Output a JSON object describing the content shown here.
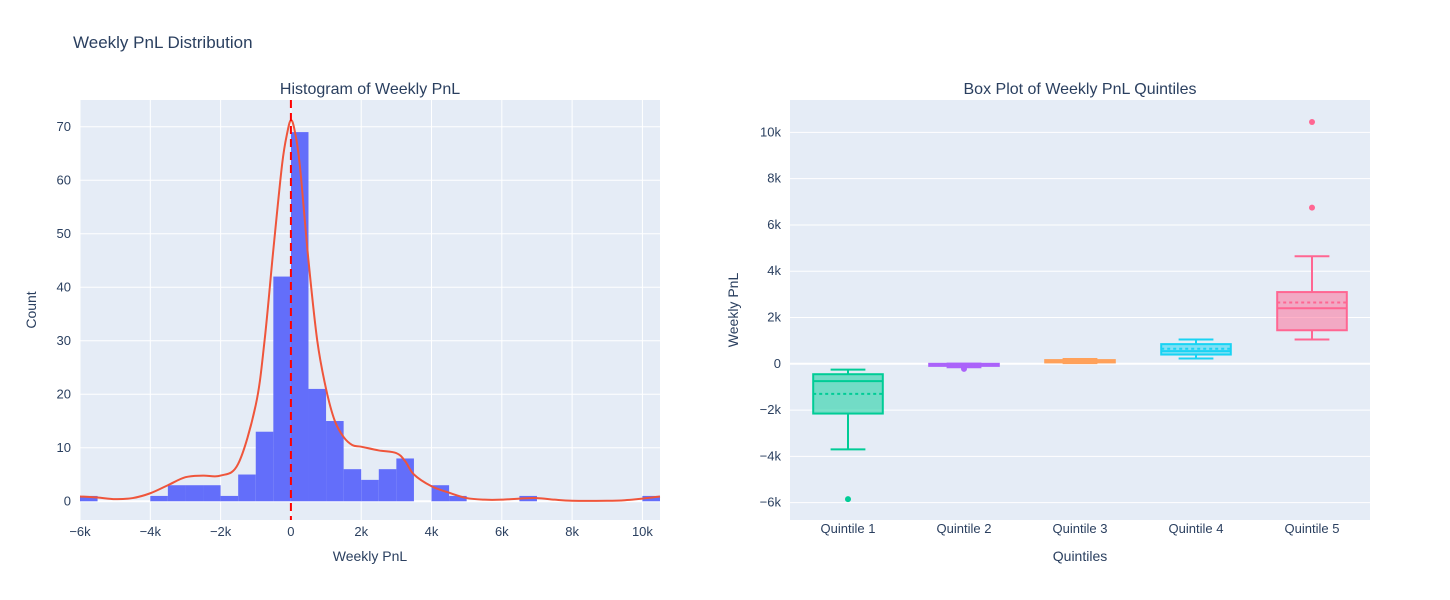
{
  "title": "Weekly PnL Distribution",
  "chart_data": [
    {
      "type": "bar",
      "title": "Histogram of Weekly PnL",
      "xlabel": "Weekly PnL",
      "ylabel": "Count",
      "xlim": [
        -6000,
        10500
      ],
      "ylim": [
        -3.5,
        75
      ],
      "x_ticks": [
        {
          "v": -6000,
          "label": "−6k"
        },
        {
          "v": -4000,
          "label": "−4k"
        },
        {
          "v": -2000,
          "label": "−2k"
        },
        {
          "v": 0,
          "label": "0"
        },
        {
          "v": 2000,
          "label": "2k"
        },
        {
          "v": 4000,
          "label": "4k"
        },
        {
          "v": 6000,
          "label": "6k"
        },
        {
          "v": 8000,
          "label": "8k"
        },
        {
          "v": 10000,
          "label": "10k"
        }
      ],
      "y_ticks": [
        0,
        10,
        20,
        30,
        40,
        50,
        60,
        70
      ],
      "bar_color": "#636efa",
      "bins": [
        {
          "x0": -6000,
          "x1": -5500,
          "count": 1
        },
        {
          "x0": -4000,
          "x1": -3500,
          "count": 1
        },
        {
          "x0": -3500,
          "x1": -3000,
          "count": 3
        },
        {
          "x0": -3000,
          "x1": -2500,
          "count": 3
        },
        {
          "x0": -2500,
          "x1": -2000,
          "count": 3
        },
        {
          "x0": -2000,
          "x1": -1500,
          "count": 1
        },
        {
          "x0": -1500,
          "x1": -1000,
          "count": 5
        },
        {
          "x0": -1000,
          "x1": -500,
          "count": 13
        },
        {
          "x0": -500,
          "x1": 0,
          "count": 42
        },
        {
          "x0": 0,
          "x1": 500,
          "count": 69
        },
        {
          "x0": 500,
          "x1": 1000,
          "count": 21
        },
        {
          "x0": 1000,
          "x1": 1500,
          "count": 15
        },
        {
          "x0": 1500,
          "x1": 2000,
          "count": 6
        },
        {
          "x0": 2000,
          "x1": 2500,
          "count": 4
        },
        {
          "x0": 2500,
          "x1": 3000,
          "count": 6
        },
        {
          "x0": 3000,
          "x1": 3500,
          "count": 8
        },
        {
          "x0": 4000,
          "x1": 4500,
          "count": 3
        },
        {
          "x0": 4500,
          "x1": 5000,
          "count": 1
        },
        {
          "x0": 6500,
          "x1": 7000,
          "count": 1
        },
        {
          "x0": 10000,
          "x1": 10500,
          "count": 1
        }
      ],
      "kde": {
        "color": "#ef553b",
        "x": [
          -6000,
          -5500,
          -5000,
          -4500,
          -4000,
          -3500,
          -3000,
          -2500,
          -2000,
          -1500,
          -1000,
          -750,
          -500,
          -250,
          -100,
          0,
          100,
          250,
          500,
          750,
          1000,
          1250,
          1500,
          1750,
          2000,
          2500,
          3000,
          3250,
          3500,
          4000,
          4500,
          5000,
          5500,
          6000,
          6500,
          7000,
          7500,
          8000,
          9000,
          9500,
          10000,
          10500
        ],
        "y": [
          0.9,
          0.7,
          0.4,
          0.6,
          1.5,
          3.0,
          4.5,
          4.8,
          4.8,
          7.0,
          18.0,
          30.0,
          47.0,
          63.0,
          69.0,
          71.2,
          69.5,
          63.0,
          45.0,
          30.0,
          21.0,
          15.0,
          12.0,
          10.5,
          10.2,
          9.5,
          9.0,
          7.5,
          5.0,
          2.8,
          1.6,
          0.6,
          0.3,
          0.3,
          0.5,
          0.6,
          0.3,
          0.1,
          0.1,
          0.2,
          0.5,
          0.9
        ]
      },
      "vline": {
        "x": 0,
        "color": "#ff0000"
      }
    },
    {
      "type": "box",
      "title": "Box Plot of Weekly PnL Quintiles",
      "xlabel": "Quintiles",
      "ylabel": "Weekly PnL",
      "ylim": [
        -6750,
        11400
      ],
      "y_ticks": [
        {
          "v": -6000,
          "label": "−6k"
        },
        {
          "v": -4000,
          "label": "−4k"
        },
        {
          "v": -2000,
          "label": "−2k"
        },
        {
          "v": 0,
          "label": "0"
        },
        {
          "v": 2000,
          "label": "2k"
        },
        {
          "v": 4000,
          "label": "4k"
        },
        {
          "v": 6000,
          "label": "6k"
        },
        {
          "v": 8000,
          "label": "8k"
        },
        {
          "v": 10000,
          "label": "10k"
        }
      ],
      "categories": [
        "Quintile 1",
        "Quintile 2",
        "Quintile 3",
        "Quintile 4",
        "Quintile 5"
      ],
      "boxes": [
        {
          "name": "Quintile 1",
          "color": "#00cc96",
          "lowerfence": -3700,
          "q1": -2150,
          "median": -750,
          "mean": -1300,
          "q3": -450,
          "upperfence": -250,
          "outliers": [
            -5850
          ]
        },
        {
          "name": "Quintile 2",
          "color": "#ab63fa",
          "lowerfence": -150,
          "q1": -90,
          "median": -40,
          "mean": -50,
          "q3": 0,
          "upperfence": 10,
          "outliers": [
            -220
          ]
        },
        {
          "name": "Quintile 3",
          "color": "#ffa15a",
          "lowerfence": 30,
          "q1": 60,
          "median": 110,
          "mean": 110,
          "q3": 160,
          "upperfence": 210,
          "outliers": []
        },
        {
          "name": "Quintile 4",
          "color": "#19d3f3",
          "lowerfence": 230,
          "q1": 400,
          "median": 550,
          "mean": 650,
          "q3": 850,
          "upperfence": 1050,
          "outliers": []
        },
        {
          "name": "Quintile 5",
          "color": "#ff6692",
          "lowerfence": 1050,
          "q1": 1450,
          "median": 2400,
          "mean": 2650,
          "q3": 3100,
          "upperfence": 4650,
          "outliers": [
            6750,
            10450
          ]
        }
      ]
    }
  ]
}
